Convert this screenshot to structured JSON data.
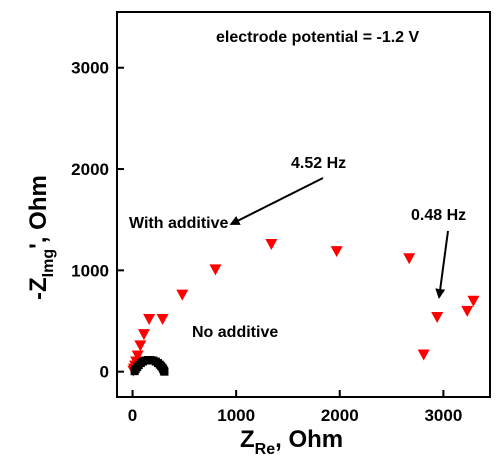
{
  "chart_data": {
    "type": "scatter",
    "title": "",
    "annotation_potential": "electrode potential = -1.2 V",
    "xlabel": {
      "main": "Z",
      "sub": "Re",
      "rest": ", Ohm"
    },
    "ylabel": {
      "prefix": "-Z",
      "sub": "Img",
      "rest": "', Ohm"
    },
    "xlim": [
      -150,
      3450
    ],
    "ylim": [
      -250,
      3550
    ],
    "xticks": [
      0,
      1000,
      2000,
      3000
    ],
    "yticks": [
      0,
      1000,
      2000,
      3000
    ],
    "grid": false,
    "colors": {
      "with_additive": "#ff0000",
      "no_additive": "#000000",
      "axis": "#000000"
    },
    "series": [
      {
        "label": "With additive",
        "marker": "triangle-down",
        "color": "#ff0000",
        "points": [
          [
            8,
            10
          ],
          [
            15,
            30
          ],
          [
            25,
            60
          ],
          [
            35,
            100
          ],
          [
            50,
            160
          ],
          [
            75,
            260
          ],
          [
            110,
            370
          ],
          [
            160,
            520
          ],
          [
            290,
            520
          ],
          [
            480,
            760
          ],
          [
            800,
            1010
          ],
          [
            1340,
            1260
          ],
          [
            1970,
            1190
          ],
          [
            2670,
            1120
          ],
          [
            2810,
            170
          ],
          [
            2940,
            540
          ],
          [
            3230,
            600
          ],
          [
            3290,
            700
          ]
        ]
      },
      {
        "label": "No additive",
        "marker": "square",
        "color": "#000000",
        "points": [
          [
            20,
            5
          ],
          [
            30,
            25
          ],
          [
            45,
            45
          ],
          [
            60,
            65
          ],
          [
            80,
            85
          ],
          [
            100,
            100
          ],
          [
            125,
            110
          ],
          [
            150,
            115
          ],
          [
            175,
            115
          ],
          [
            200,
            110
          ],
          [
            225,
            100
          ],
          [
            245,
            85
          ],
          [
            262,
            70
          ],
          [
            276,
            55
          ],
          [
            288,
            40
          ],
          [
            296,
            25
          ],
          [
            302,
            12
          ],
          [
            305,
            3
          ],
          [
            308,
            0
          ]
        ]
      }
    ],
    "annotations": [
      {
        "text": "4.52 Hz",
        "target": [
          1340,
          1260
        ]
      },
      {
        "text": "0.48 Hz",
        "target": [
          2940,
          540
        ]
      },
      {
        "text": "With additive"
      },
      {
        "text": "No additive"
      }
    ]
  }
}
